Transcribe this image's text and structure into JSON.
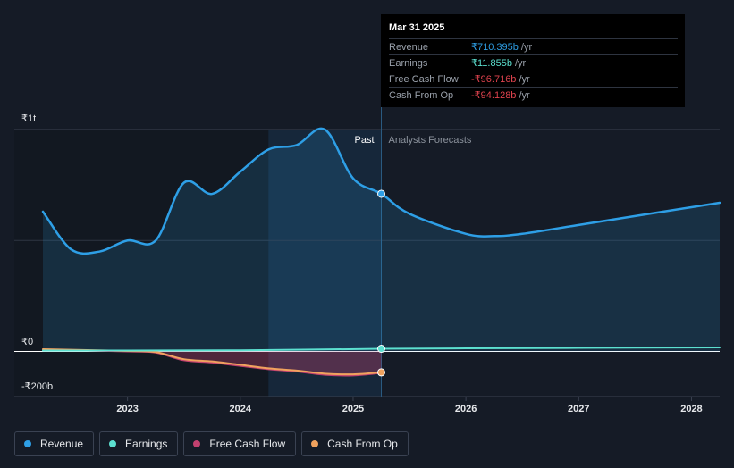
{
  "chart_data": {
    "type": "line",
    "y_axis": {
      "ylim": [
        -200,
        1000
      ],
      "unit": "b",
      "tick_labels": [
        "₹1t",
        "₹0",
        "-₹200b"
      ]
    },
    "x_axis": {
      "xlim": [
        2022.25,
        2028.25
      ],
      "ticks": [
        2023,
        2024,
        2025,
        2026,
        2027,
        2028
      ],
      "tick_labels": [
        "2023",
        "2024",
        "2025",
        "2026",
        "2027",
        "2028"
      ]
    },
    "regions": {
      "past_label": "Past",
      "forecast_label": "Analysts Forecasts",
      "divider_x": 2025.25,
      "highlight_start_x": 2024.25
    },
    "series": [
      {
        "name": "Revenue",
        "color": "#2e9fe6",
        "points": [
          [
            2022.25,
            630
          ],
          [
            2022.5,
            460
          ],
          [
            2022.75,
            450
          ],
          [
            2023.0,
            500
          ],
          [
            2023.25,
            500
          ],
          [
            2023.5,
            760
          ],
          [
            2023.75,
            710
          ],
          [
            2024.0,
            810
          ],
          [
            2024.25,
            910
          ],
          [
            2024.5,
            930
          ],
          [
            2024.75,
            1000
          ],
          [
            2025.0,
            780
          ],
          [
            2025.25,
            710.395
          ],
          [
            2025.5,
            620
          ],
          [
            2026.0,
            530
          ],
          [
            2026.25,
            520
          ],
          [
            2026.5,
            530
          ],
          [
            2027.0,
            570
          ],
          [
            2027.5,
            610
          ],
          [
            2028.0,
            650
          ],
          [
            2028.25,
            670
          ]
        ]
      },
      {
        "name": "Earnings",
        "color": "#5ce0d0",
        "points": [
          [
            2022.25,
            4
          ],
          [
            2023.0,
            4
          ],
          [
            2024.0,
            5
          ],
          [
            2025.25,
            11.855
          ],
          [
            2026.0,
            14
          ],
          [
            2027.0,
            16
          ],
          [
            2028.25,
            18
          ]
        ]
      },
      {
        "name": "Free Cash Flow",
        "color": "#c2416f",
        "points": [
          [
            2022.25,
            8
          ],
          [
            2023.0,
            0
          ],
          [
            2023.25,
            -5
          ],
          [
            2023.5,
            -40
          ],
          [
            2023.75,
            -50
          ],
          [
            2024.0,
            -65
          ],
          [
            2024.25,
            -80
          ],
          [
            2024.5,
            -90
          ],
          [
            2024.75,
            -105
          ],
          [
            2025.0,
            -108
          ],
          [
            2025.25,
            -96.716
          ]
        ]
      },
      {
        "name": "Cash From Op",
        "color": "#f0a25e",
        "points": [
          [
            2022.25,
            10
          ],
          [
            2023.0,
            2
          ],
          [
            2023.25,
            -3
          ],
          [
            2023.5,
            -35
          ],
          [
            2023.75,
            -45
          ],
          [
            2024.0,
            -60
          ],
          [
            2024.25,
            -76
          ],
          [
            2024.5,
            -86
          ],
          [
            2024.75,
            -100
          ],
          [
            2025.0,
            -103
          ],
          [
            2025.25,
            -94.128
          ]
        ]
      }
    ]
  },
  "tooltip": {
    "date": "Mar 31 2025",
    "rows": [
      {
        "label": "Revenue",
        "value": "₹710.395b",
        "unit": "/yr",
        "color": "#2e9fe6"
      },
      {
        "label": "Earnings",
        "value": "₹11.855b",
        "unit": "/yr",
        "color": "#5ce0d0"
      },
      {
        "label": "Free Cash Flow",
        "value": "-₹96.716b",
        "unit": "/yr",
        "color": "#e0434e"
      },
      {
        "label": "Cash From Op",
        "value": "-₹94.128b",
        "unit": "/yr",
        "color": "#e0434e"
      }
    ]
  },
  "legend": [
    {
      "label": "Revenue",
      "color": "#2e9fe6"
    },
    {
      "label": "Earnings",
      "color": "#5ce0d0"
    },
    {
      "label": "Free Cash Flow",
      "color": "#c2416f"
    },
    {
      "label": "Cash From Op",
      "color": "#f0a25e"
    }
  ]
}
